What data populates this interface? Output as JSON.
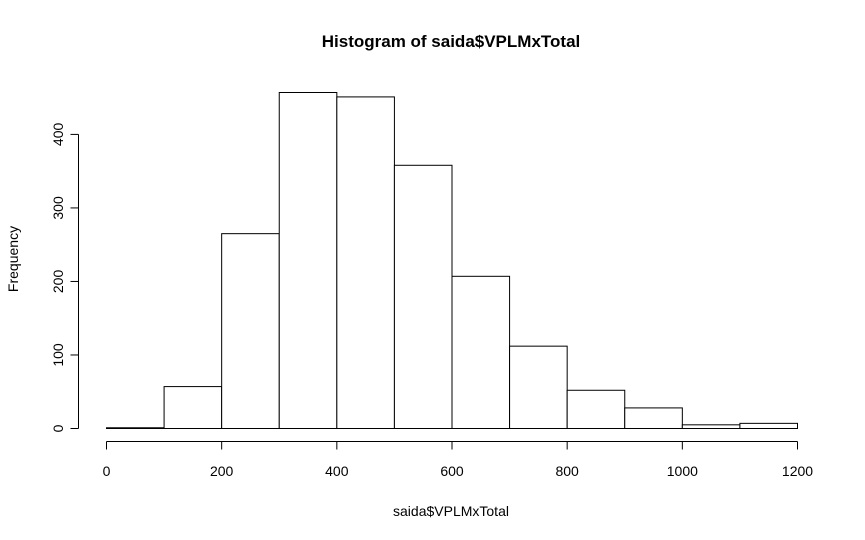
{
  "chart_data": {
    "type": "bar",
    "title": "Histogram of saida$VPLMxTotal",
    "xlabel": "saida$VPLMxTotal",
    "ylabel": "Frequency",
    "bins": [
      {
        "from": 0,
        "to": 100,
        "count": 1
      },
      {
        "from": 100,
        "to": 200,
        "count": 57
      },
      {
        "from": 200,
        "to": 300,
        "count": 265
      },
      {
        "from": 300,
        "to": 400,
        "count": 457
      },
      {
        "from": 400,
        "to": 500,
        "count": 451
      },
      {
        "from": 500,
        "to": 600,
        "count": 358
      },
      {
        "from": 600,
        "to": 700,
        "count": 207
      },
      {
        "from": 700,
        "to": 800,
        "count": 112
      },
      {
        "from": 800,
        "to": 900,
        "count": 52
      },
      {
        "from": 900,
        "to": 1000,
        "count": 28
      },
      {
        "from": 1000,
        "to": 1100,
        "count": 5
      },
      {
        "from": 1100,
        "to": 1200,
        "count": 7
      }
    ],
    "xticks": [
      0,
      200,
      400,
      600,
      800,
      1000,
      1200
    ],
    "yticks": [
      0,
      100,
      200,
      300,
      400
    ],
    "xlim": [
      0,
      1200
    ],
    "ylim": [
      0,
      457
    ],
    "grid": false,
    "bar_fill": "#ffffff",
    "bar_stroke": "#000000"
  }
}
